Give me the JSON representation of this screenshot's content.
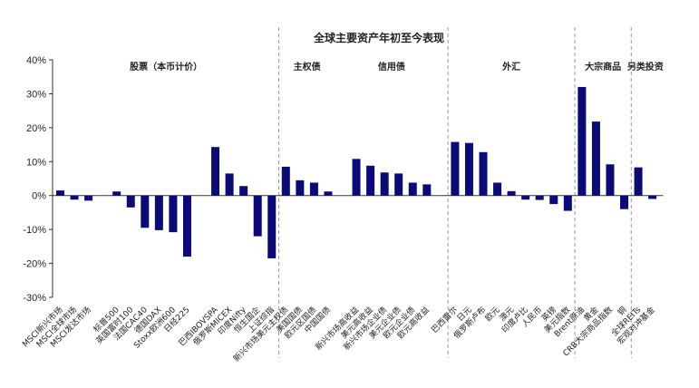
{
  "chart_data": {
    "type": "bar",
    "title": "全球主要资产年初至今表现",
    "ylim": [
      -30,
      40
    ],
    "yticks": [
      -30,
      -20,
      -10,
      0,
      10,
      20,
      30,
      40
    ],
    "ytick_labels": [
      "-30%",
      "-20%",
      "-10%",
      "0%",
      "10%",
      "20%",
      "30%",
      "40%"
    ],
    "categories": [
      "MSCI新兴市场",
      "MSCI全球市场",
      "MSCI发达市场",
      "",
      "标普500",
      "英国富时100",
      "法国CAC40",
      "德国DAX",
      "Stoxx欧洲600",
      "日经225",
      "",
      "巴西IBOVSPA",
      "俄罗斯MICEX",
      "印度Nifty",
      "恒生国企",
      "上证综指",
      "新兴市场美元主权债",
      "美国国债",
      "欧元区国债",
      "中国国债",
      "",
      "新兴市场高收益",
      "美元高收益",
      "新兴市场企业债",
      "美元企业债",
      "欧元企业债",
      "欧元高收益",
      "",
      "巴西雷尔",
      "日元",
      "俄罗斯卢布",
      "欧元",
      "澳元",
      "印度卢比",
      "人民币",
      "英镑",
      "美元指数",
      "Brent原油",
      "黄金",
      "CRB大宗商品指数",
      "铜",
      "全球REITs",
      "宏观对冲基金"
    ],
    "values": [
      1.5,
      -1.2,
      -1.5,
      null,
      1.2,
      -3.5,
      -9.5,
      -10.2,
      -10.8,
      -18.0,
      null,
      14.3,
      6.5,
      2.8,
      -12.0,
      -18.5,
      8.5,
      4.5,
      3.8,
      1.2,
      null,
      10.8,
      8.8,
      6.8,
      6.5,
      3.8,
      3.3,
      null,
      15.8,
      15.5,
      12.8,
      3.8,
      1.3,
      -1.2,
      -1.3,
      -2.5,
      -4.5,
      32.0,
      21.8,
      9.2,
      -4.0,
      8.3,
      -1.0
    ],
    "groups": [
      {
        "label": "股票（本币计价）",
        "start": 0,
        "end": 15
      },
      {
        "label": "主权债",
        "start": 16,
        "end": 19
      },
      {
        "label": "信用债",
        "start": 21,
        "end": 26
      },
      {
        "label": "外汇",
        "start": 28,
        "end": 36
      },
      {
        "label": "大宗商品",
        "start": 37,
        "end": 40
      },
      {
        "label": "另类投资",
        "start": 41,
        "end": 42
      }
    ],
    "dividers_after": [
      15,
      27,
      36,
      40
    ],
    "colors": {
      "bar": "#0b0b73"
    }
  }
}
